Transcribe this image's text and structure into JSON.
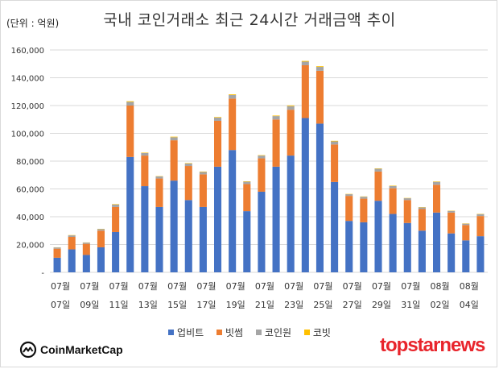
{
  "header": {
    "unit": "(단위 : 억원)",
    "title": "국내 코인거래소 최근 24시간 거래금액 추이"
  },
  "legend": [
    {
      "label": "업비트",
      "color": "#4472c4"
    },
    {
      "label": "빗썸",
      "color": "#ed7d31"
    },
    {
      "label": "코인원",
      "color": "#a5a5a5"
    },
    {
      "label": "코빗",
      "color": "#ffc000"
    }
  ],
  "brand": {
    "left": "CoinMarketCap",
    "right": "topstarnews"
  },
  "chart_data": {
    "type": "bar",
    "stacked": true,
    "ylim": [
      0,
      160000
    ],
    "yticks": [
      "-",
      "20,000",
      "40,000",
      "60,000",
      "80,000",
      "100,000",
      "120,000",
      "140,000",
      "160,000"
    ],
    "grid": true,
    "legend_position": "bottom",
    "categories": [
      "07-07",
      "07-08",
      "07-09",
      "07-10",
      "07-11",
      "07-12",
      "07-13",
      "07-14",
      "07-15",
      "07-16",
      "07-17",
      "07-18",
      "07-19",
      "07-20",
      "07-21",
      "07-22",
      "07-23",
      "07-24",
      "07-25",
      "07-26",
      "07-27",
      "07-28",
      "07-29",
      "07-30",
      "07-31",
      "08-01",
      "08-02",
      "08-03",
      "08-04",
      "08-05"
    ],
    "x_tick_labels": [
      {
        "month": "07월",
        "day": "07일"
      },
      {
        "month": "07월",
        "day": "09일"
      },
      {
        "month": "07월",
        "day": "11일"
      },
      {
        "month": "07월",
        "day": "13일"
      },
      {
        "month": "07월",
        "day": "15일"
      },
      {
        "month": "07월",
        "day": "17일"
      },
      {
        "month": "07월",
        "day": "19일"
      },
      {
        "month": "07월",
        "day": "21일"
      },
      {
        "month": "07월",
        "day": "23일"
      },
      {
        "month": "07월",
        "day": "25일"
      },
      {
        "month": "07월",
        "day": "27일"
      },
      {
        "month": "07월",
        "day": "29일"
      },
      {
        "month": "07월",
        "day": "31일"
      },
      {
        "month": "08월",
        "day": "02일"
      },
      {
        "month": "08월",
        "day": "04일"
      }
    ],
    "series": [
      {
        "name": "업비트",
        "values": [
          10500,
          16500,
          12500,
          18000,
          29000,
          83000,
          62000,
          47000,
          66000,
          52000,
          47000,
          76000,
          88000,
          44000,
          58000,
          76000,
          84000,
          111000,
          107000,
          65000,
          37000,
          36000,
          51500,
          42000,
          35500,
          30000,
          43000,
          28000,
          23000,
          26000
        ]
      },
      {
        "name": "빗썸",
        "values": [
          6500,
          9000,
          8000,
          12000,
          18000,
          37000,
          22000,
          20500,
          29000,
          24500,
          23500,
          33000,
          37000,
          19500,
          24000,
          34000,
          33000,
          38000,
          38000,
          27000,
          18000,
          17000,
          21000,
          18500,
          16500,
          15500,
          20000,
          15000,
          11000,
          14500
        ]
      },
      {
        "name": "코인원",
        "values": [
          900,
          1100,
          900,
          1100,
          1800,
          2600,
          1800,
          1500,
          2200,
          1800,
          1700,
          2300,
          2600,
          1700,
          2000,
          2400,
          2600,
          2600,
          2800,
          2200,
          1200,
          1400,
          2000,
          1600,
          1300,
          1200,
          2100,
          1200,
          1000,
          1400
        ]
      },
      {
        "name": "코빗",
        "values": [
          100,
          200,
          100,
          200,
          300,
          500,
          300,
          200,
          400,
          300,
          300,
          400,
          500,
          300,
          300,
          400,
          500,
          500,
          500,
          400,
          200,
          200,
          300,
          300,
          200,
          200,
          300,
          200,
          200,
          200
        ]
      }
    ]
  }
}
